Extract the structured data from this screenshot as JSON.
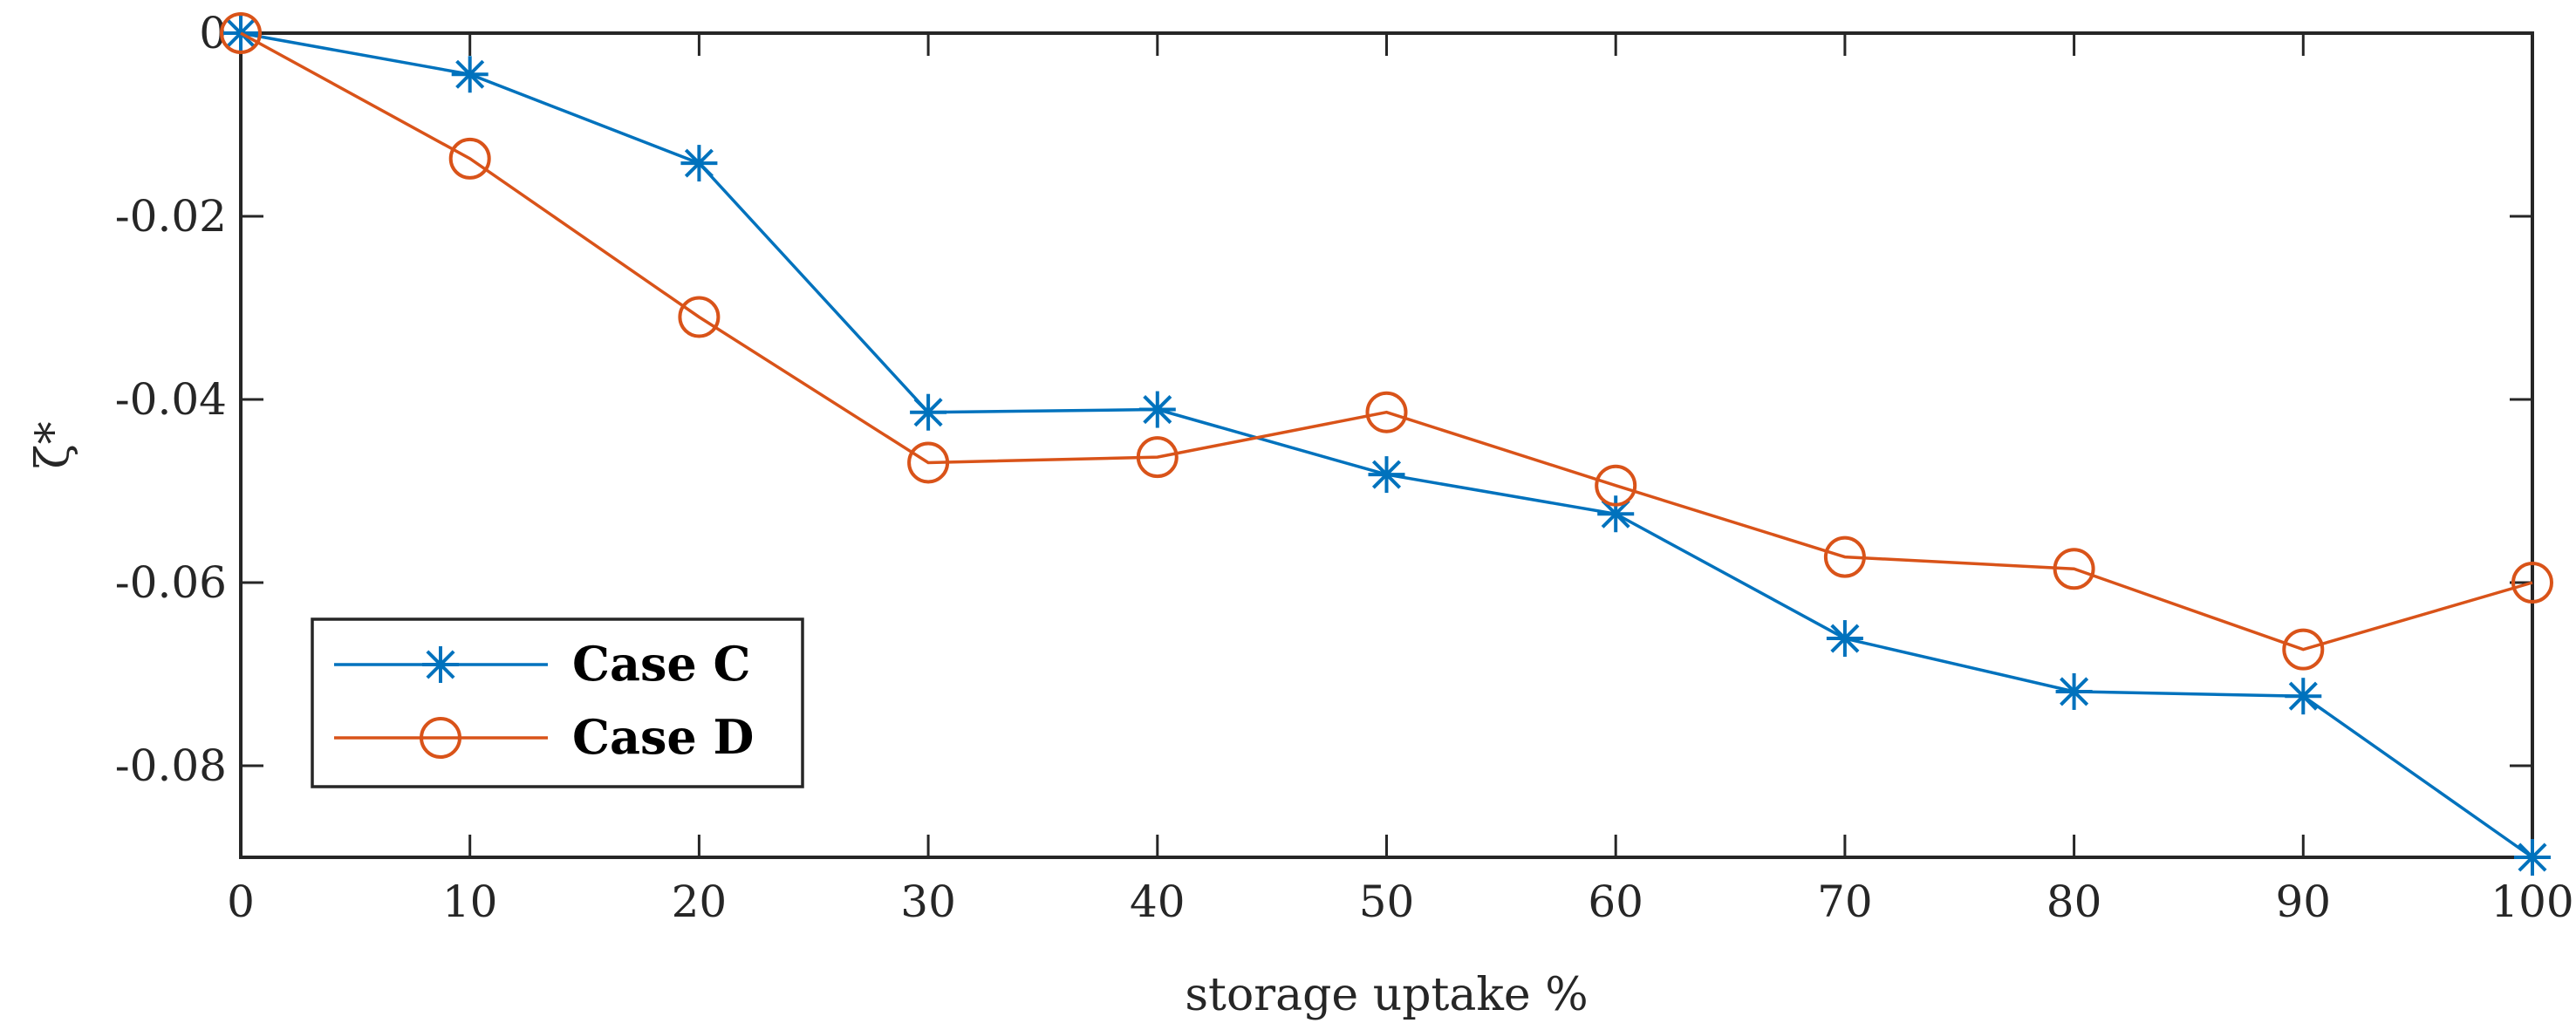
{
  "chart_data": {
    "type": "line",
    "title": "",
    "xlabel": "storage uptake %",
    "ylabel": "ζ*",
    "xlim": [
      0,
      100
    ],
    "ylim": [
      -0.09,
      0
    ],
    "xticks": [
      0,
      10,
      20,
      30,
      40,
      50,
      60,
      70,
      80,
      90,
      100
    ],
    "xtick_labels": [
      "0",
      "10",
      "20",
      "30",
      "40",
      "50",
      "60",
      "70",
      "80",
      "90",
      "100"
    ],
    "yticks": [
      0,
      -0.02,
      -0.04,
      -0.06,
      -0.08
    ],
    "ytick_labels": [
      "0",
      "-0.02",
      "-0.04",
      "-0.06",
      "-0.08"
    ],
    "grid": false,
    "legend_position": "bottom-left",
    "x": [
      0,
      10,
      20,
      30,
      40,
      50,
      60,
      70,
      80,
      90,
      100
    ],
    "series": [
      {
        "name": "Case C",
        "color": "#0072BD",
        "marker": "asterisk",
        "values": [
          0,
          -0.0045,
          -0.0142,
          -0.0414,
          -0.0411,
          -0.0482,
          -0.0525,
          -0.0661,
          -0.0719,
          -0.0724,
          -0.09
        ]
      },
      {
        "name": "Case D",
        "color": "#D95319",
        "marker": "circle",
        "values": [
          0,
          -0.0137,
          -0.031,
          -0.0469,
          -0.0463,
          -0.0414,
          -0.0494,
          -0.0572,
          -0.0585,
          -0.0673,
          -0.06
        ]
      }
    ]
  }
}
